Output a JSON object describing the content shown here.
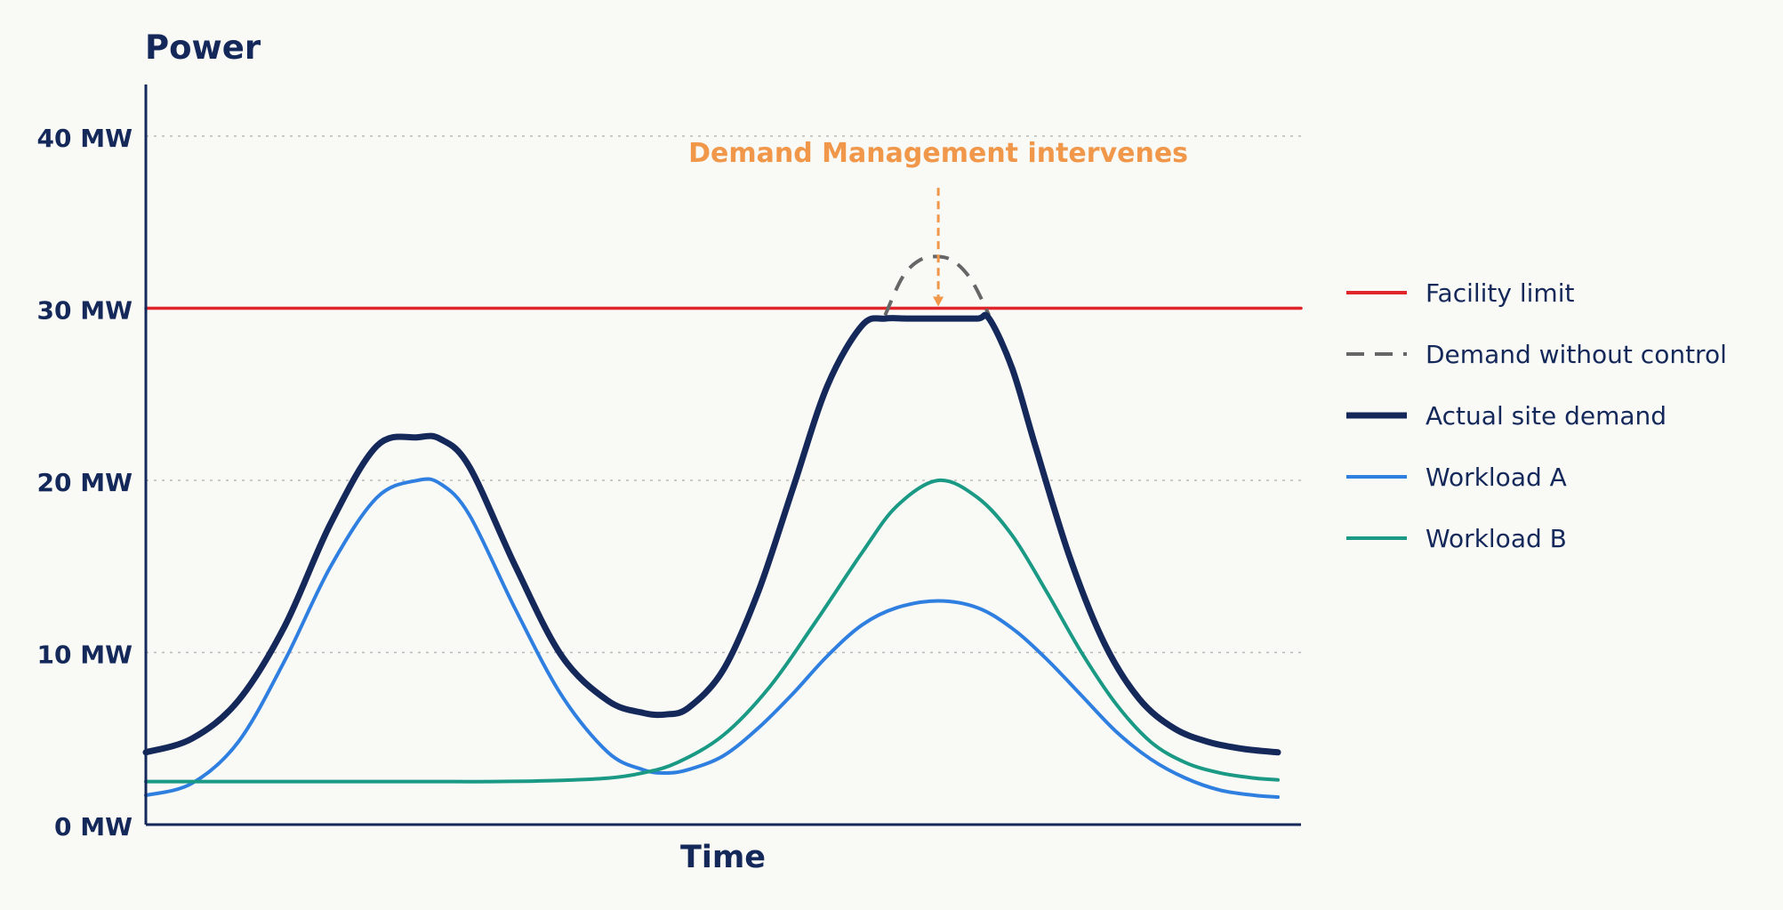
{
  "chart_data": {
    "type": "line",
    "ylabel": "Power",
    "xlabel": "Time",
    "ylim": [
      0,
      43
    ],
    "xlim": [
      0,
      1
    ],
    "y_ticks": [
      {
        "value": 0,
        "label": "0 MW"
      },
      {
        "value": 10,
        "label": "10 MW"
      },
      {
        "value": 20,
        "label": "20 MW"
      },
      {
        "value": 30,
        "label": "30 MW"
      },
      {
        "value": 40,
        "label": "40 MW"
      }
    ],
    "grid": "horizontal-dotted",
    "legend_position": "right",
    "annotation": {
      "text": "Demand Management intervenes",
      "x": 0.686,
      "arrow_from_y": 37,
      "arrow_to_y": 30,
      "color": "#f0974a"
    },
    "facility_limit": {
      "name": "Facility limit",
      "value": 30,
      "color": "#e0262b"
    },
    "series": [
      {
        "name": "Facility limit",
        "color": "#e0262b",
        "style": "solid",
        "width": 3.5,
        "x": [
          0,
          1.0
        ],
        "values": [
          30,
          30
        ]
      },
      {
        "name": "Demand without control",
        "color": "#666666",
        "style": "dashed",
        "width": 4,
        "x": [
          0.64,
          0.655,
          0.67,
          0.686,
          0.7,
          0.715,
          0.73
        ],
        "values": [
          29.6,
          31.8,
          32.8,
          33.0,
          32.7,
          31.6,
          29.6
        ]
      },
      {
        "name": "Actual site demand",
        "color": "#14285a",
        "style": "solid",
        "width": 7,
        "x": [
          0,
          0.04,
          0.08,
          0.12,
          0.16,
          0.2,
          0.235,
          0.255,
          0.28,
          0.32,
          0.36,
          0.4,
          0.43,
          0.45,
          0.47,
          0.5,
          0.53,
          0.56,
          0.59,
          0.62,
          0.64,
          0.66,
          0.69,
          0.72,
          0.73,
          0.75,
          0.77,
          0.8,
          0.83,
          0.86,
          0.89,
          0.92,
          0.95,
          0.98
        ],
        "values": [
          4.2,
          5.0,
          7.2,
          11.5,
          17.5,
          22.0,
          22.5,
          22.4,
          20.8,
          15.0,
          9.8,
          7.2,
          6.5,
          6.4,
          6.8,
          9.0,
          13.5,
          19.5,
          25.5,
          29.0,
          29.4,
          29.4,
          29.4,
          29.4,
          29.4,
          26.5,
          22.0,
          15.5,
          10.5,
          7.3,
          5.6,
          4.8,
          4.4,
          4.2
        ]
      },
      {
        "name": "Workload A",
        "color": "#2f7fe0",
        "style": "solid",
        "width": 4,
        "x": [
          0,
          0.04,
          0.08,
          0.12,
          0.16,
          0.2,
          0.235,
          0.255,
          0.28,
          0.32,
          0.36,
          0.4,
          0.43,
          0.45,
          0.47,
          0.5,
          0.53,
          0.56,
          0.59,
          0.62,
          0.65,
          0.686,
          0.72,
          0.75,
          0.78,
          0.81,
          0.84,
          0.87,
          0.9,
          0.93,
          0.96,
          0.98
        ],
        "values": [
          1.7,
          2.4,
          4.8,
          9.5,
          15.0,
          19.0,
          20.0,
          19.8,
          18.0,
          12.5,
          7.5,
          4.2,
          3.2,
          3.0,
          3.2,
          4.0,
          5.6,
          7.6,
          9.8,
          11.6,
          12.6,
          13.0,
          12.6,
          11.4,
          9.6,
          7.5,
          5.4,
          3.8,
          2.7,
          2.0,
          1.7,
          1.6
        ]
      },
      {
        "name": "Workload B",
        "color": "#1a9985",
        "style": "solid",
        "width": 4,
        "x": [
          0,
          0.05,
          0.1,
          0.15,
          0.2,
          0.25,
          0.3,
          0.35,
          0.4,
          0.43,
          0.46,
          0.5,
          0.54,
          0.58,
          0.62,
          0.65,
          0.686,
          0.72,
          0.75,
          0.78,
          0.81,
          0.84,
          0.87,
          0.9,
          0.93,
          0.96,
          0.98
        ],
        "values": [
          2.5,
          2.5,
          2.5,
          2.5,
          2.5,
          2.5,
          2.5,
          2.55,
          2.7,
          3.0,
          3.6,
          5.2,
          8.0,
          11.8,
          15.8,
          18.5,
          20.0,
          19.0,
          16.8,
          13.5,
          10.0,
          7.0,
          4.8,
          3.6,
          3.0,
          2.7,
          2.6
        ]
      }
    ]
  }
}
